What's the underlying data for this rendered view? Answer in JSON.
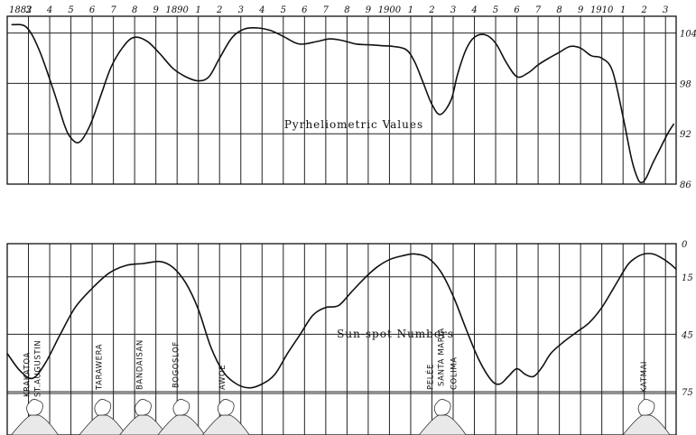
{
  "chart_data": [
    {
      "type": "line",
      "title": "Pyrheliometric Values",
      "x_tick_labels": [
        "1882",
        "3",
        "4",
        "5",
        "6",
        "7",
        "8",
        "9",
        "1890",
        "1",
        "2",
        "3",
        "4",
        "5",
        "6",
        "7",
        "8",
        "9",
        "1900",
        "1",
        "2",
        "3",
        "4",
        "5",
        "6",
        "7",
        "8",
        "9",
        "1910",
        "1",
        "2",
        "3"
      ],
      "xlim": [
        1882,
        1913.5
      ],
      "ylim": [
        86,
        106
      ],
      "y_ticks": [
        104,
        98,
        92,
        86
      ],
      "y_tick_labels": [
        "104",
        "98",
        "92",
        "86"
      ],
      "grid": true,
      "series": [
        {
          "x": [
            1882.2,
            1882.9,
            1883.5,
            1884.2,
            1884.7,
            1885.0,
            1885.4,
            1885.9,
            1886.4,
            1886.9,
            1887.5,
            1888.0,
            1888.6,
            1889.2,
            1889.8,
            1890.4,
            1891.0,
            1891.5,
            1892.0,
            1892.6,
            1893.2,
            1893.8,
            1894.4,
            1895.0,
            1895.6,
            1896.0,
            1896.6,
            1897.2,
            1897.8,
            1898.4,
            1899.0,
            1899.6,
            1900.2,
            1900.8,
            1901.2,
            1901.6,
            1902.0,
            1902.4,
            1902.9,
            1903.2,
            1903.6,
            1904.0,
            1904.5,
            1905.0,
            1905.5,
            1906.0,
            1906.5,
            1907.0,
            1907.5,
            1908.0,
            1908.5,
            1909.0,
            1909.5,
            1910.0,
            1910.5,
            1911.0,
            1911.4,
            1911.7,
            1911.9,
            1912.1,
            1912.4,
            1912.7,
            1913.1,
            1913.4
          ],
          "y": [
            105.0,
            104.7,
            102.0,
            97.0,
            93.0,
            91.5,
            91.0,
            93.0,
            96.5,
            100.0,
            102.5,
            103.5,
            103.0,
            101.5,
            99.8,
            98.8,
            98.3,
            98.8,
            101.0,
            103.5,
            104.5,
            104.6,
            104.3,
            103.6,
            102.8,
            102.7,
            103.0,
            103.3,
            103.1,
            102.7,
            102.6,
            102.5,
            102.4,
            102.0,
            100.5,
            98.0,
            95.5,
            94.3,
            96.0,
            99.0,
            102.0,
            103.5,
            103.8,
            102.8,
            100.5,
            98.8,
            99.2,
            100.2,
            101.0,
            101.7,
            102.4,
            102.2,
            101.3,
            101.0,
            99.5,
            94.0,
            89.0,
            86.6,
            86.2,
            86.8,
            88.5,
            90.0,
            92.0,
            93.2
          ]
        }
      ]
    },
    {
      "type": "line",
      "title": "Sun-spot Numbers",
      "xlim": [
        1882,
        1913.5
      ],
      "ylim": [
        0,
        90
      ],
      "y_inverted": true,
      "y_ticks": [
        0,
        15,
        45,
        75
      ],
      "y_tick_labels": [
        "0",
        "15",
        "45",
        "75"
      ],
      "grid": true,
      "series": [
        {
          "x": [
            1882.0,
            1882.6,
            1883.2,
            1883.8,
            1884.5,
            1885.2,
            1886.0,
            1886.8,
            1887.6,
            1888.4,
            1889.2,
            1889.8,
            1890.4,
            1891.0,
            1891.6,
            1892.2,
            1892.8,
            1893.4,
            1894.0,
            1894.6,
            1895.2,
            1895.8,
            1896.4,
            1897.0,
            1897.6,
            1898.2,
            1898.8,
            1899.4,
            1900.0,
            1900.6,
            1901.2,
            1901.8,
            1902.4,
            1903.0,
            1903.6,
            1904.2,
            1904.8,
            1905.2,
            1905.6,
            1906.0,
            1906.4,
            1906.8,
            1907.2,
            1907.6,
            1908.2,
            1908.8,
            1909.4,
            1910.0,
            1910.6,
            1911.2,
            1911.6,
            1912.0,
            1912.4,
            1912.8,
            1913.2,
            1913.5
          ],
          "y": [
            55,
            64,
            68,
            60,
            45,
            31,
            21,
            13,
            9,
            8,
            7,
            10,
            18,
            32,
            52,
            65,
            71,
            73,
            71,
            66,
            55,
            45,
            35,
            31,
            30,
            23,
            16,
            10,
            6,
            4,
            3,
            5,
            12,
            25,
            42,
            58,
            69,
            71,
            67,
            63,
            66,
            67,
            62,
            55,
            49,
            44,
            39,
            31,
            20,
            9,
            5,
            3,
            3,
            5,
            8,
            11
          ]
        }
      ],
      "annotations": [
        "Krakatoa",
        "St.Augustin",
        "Tarawera",
        "Bandaisan",
        "Bogoslof",
        "Awoe",
        "Pelée",
        "Santa Maria",
        "Colima",
        "Katmai"
      ]
    }
  ]
}
